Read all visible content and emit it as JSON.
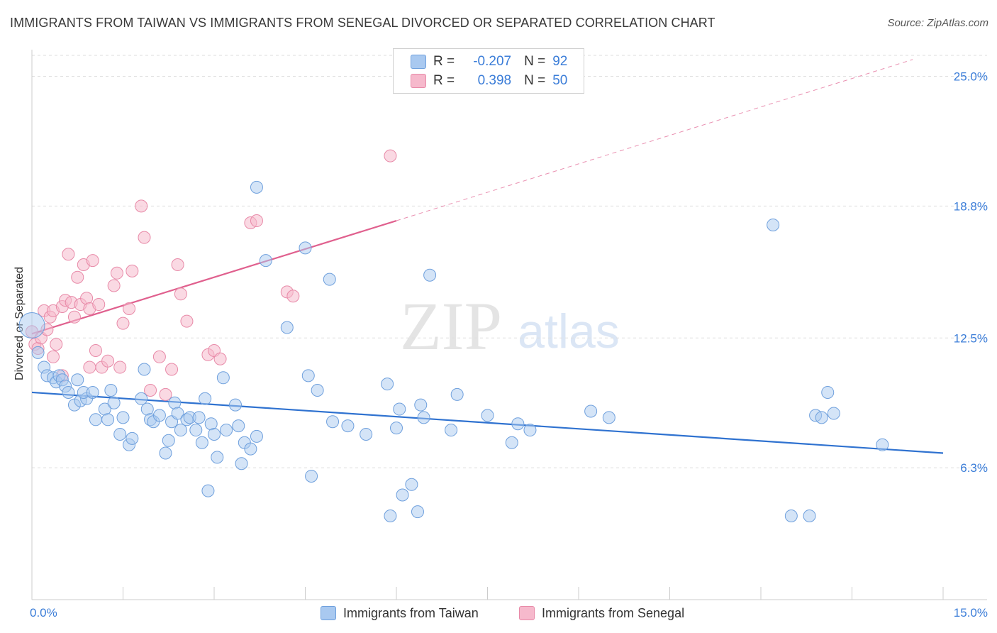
{
  "title": "IMMIGRANTS FROM TAIWAN VS IMMIGRANTS FROM SENEGAL DIVORCED OR SEPARATED CORRELATION CHART",
  "source": "Source: ZipAtlas.com",
  "watermark": {
    "zip": "ZIP",
    "atlas": "atlas"
  },
  "legend": {
    "r_label": "R =",
    "n_label": "N =",
    "taiwan": {
      "r": "-0.207",
      "n": "92"
    },
    "senegal": {
      "r": "0.398",
      "n": "50"
    }
  },
  "colors": {
    "taiwan_fill": "#a9c9f0",
    "taiwan_stroke": "#6fa0dd",
    "taiwan_line": "#2f72d0",
    "senegal_fill": "#f6b9cc",
    "senegal_stroke": "#e88aa8",
    "senegal_line": "#e0608e",
    "axis_text": "#3b7dd8"
  },
  "chart_data": {
    "type": "scatter",
    "title": "IMMIGRANTS FROM TAIWAN VS IMMIGRANTS FROM SENEGAL DIVORCED OR SEPARATED CORRELATION CHART",
    "xlabel": "",
    "ylabel": "Divorced or Separated",
    "xlim": [
      0,
      15
    ],
    "ylim": [
      0,
      26
    ],
    "x_tick_labels": [
      "0.0%",
      "15.0%"
    ],
    "y_ticks": [
      6.3,
      12.5,
      18.8,
      25.0
    ],
    "y_tick_labels": [
      "6.3%",
      "12.5%",
      "18.8%",
      "25.0%"
    ],
    "grid": "horizontal dashed",
    "legend_position": "top-center",
    "series": [
      {
        "name": "Immigrants from Taiwan",
        "trend": {
          "x": [
            0,
            15
          ],
          "y": [
            9.9,
            7.0
          ]
        },
        "points": [
          [
            0.0,
            13.1,
            2
          ],
          [
            0.1,
            11.8,
            1
          ],
          [
            0.2,
            11.1,
            1
          ],
          [
            0.25,
            10.7,
            1
          ],
          [
            0.35,
            10.6,
            1
          ],
          [
            0.4,
            10.4,
            1
          ],
          [
            0.45,
            10.7,
            1
          ],
          [
            0.5,
            10.5,
            1
          ],
          [
            0.55,
            10.2,
            1
          ],
          [
            0.6,
            9.9,
            1
          ],
          [
            0.75,
            10.5,
            1
          ],
          [
            0.7,
            9.3,
            1
          ],
          [
            0.8,
            9.5,
            1
          ],
          [
            0.9,
            9.6,
            1
          ],
          [
            0.85,
            9.9,
            1
          ],
          [
            1.0,
            9.9,
            1
          ],
          [
            1.05,
            8.6,
            1
          ],
          [
            1.2,
            9.1,
            1
          ],
          [
            1.25,
            8.6,
            1
          ],
          [
            1.3,
            10.0,
            1
          ],
          [
            1.35,
            9.4,
            1
          ],
          [
            1.5,
            8.7,
            1
          ],
          [
            1.45,
            7.9,
            1
          ],
          [
            1.6,
            7.4,
            1
          ],
          [
            1.65,
            7.7,
            1
          ],
          [
            1.8,
            9.6,
            1
          ],
          [
            1.85,
            11.0,
            1
          ],
          [
            1.9,
            9.1,
            1
          ],
          [
            1.95,
            8.6,
            1
          ],
          [
            2.0,
            8.5,
            1
          ],
          [
            2.1,
            8.8,
            1
          ],
          [
            2.2,
            7.0,
            1
          ],
          [
            2.25,
            7.6,
            1
          ],
          [
            2.3,
            8.5,
            1
          ],
          [
            2.35,
            9.4,
            1
          ],
          [
            2.4,
            8.9,
            1
          ],
          [
            2.45,
            8.1,
            1
          ],
          [
            2.55,
            8.6,
            1
          ],
          [
            2.6,
            8.7,
            1
          ],
          [
            2.7,
            8.1,
            1
          ],
          [
            2.75,
            8.7,
            1
          ],
          [
            2.8,
            7.5,
            1
          ],
          [
            2.85,
            9.6,
            1
          ],
          [
            2.9,
            5.2,
            1
          ],
          [
            2.95,
            8.4,
            1
          ],
          [
            3.0,
            7.9,
            1
          ],
          [
            3.05,
            6.8,
            1
          ],
          [
            3.15,
            10.6,
            1
          ],
          [
            3.2,
            8.1,
            1
          ],
          [
            3.35,
            9.3,
            1
          ],
          [
            3.4,
            8.3,
            1
          ],
          [
            3.45,
            6.5,
            1
          ],
          [
            3.5,
            7.5,
            1
          ],
          [
            3.6,
            7.2,
            1
          ],
          [
            3.7,
            7.8,
            1
          ],
          [
            3.7,
            19.7,
            1
          ],
          [
            3.85,
            16.2,
            1
          ],
          [
            4.2,
            13.0,
            1
          ],
          [
            4.5,
            16.8,
            1
          ],
          [
            4.55,
            10.7,
            1
          ],
          [
            4.6,
            5.9,
            1
          ],
          [
            4.7,
            10.0,
            1
          ],
          [
            4.9,
            15.3,
            1
          ],
          [
            4.95,
            8.5,
            1
          ],
          [
            5.2,
            8.3,
            1
          ],
          [
            5.5,
            7.9,
            1
          ],
          [
            5.85,
            10.3,
            1
          ],
          [
            5.9,
            4.0,
            1
          ],
          [
            6.0,
            8.2,
            1
          ],
          [
            6.05,
            9.1,
            1
          ],
          [
            6.1,
            5.0,
            1
          ],
          [
            6.25,
            5.5,
            1
          ],
          [
            6.35,
            4.2,
            1
          ],
          [
            6.4,
            9.3,
            1
          ],
          [
            6.45,
            8.7,
            1
          ],
          [
            6.55,
            15.5,
            1
          ],
          [
            6.9,
            8.1,
            1
          ],
          [
            7.0,
            9.8,
            1
          ],
          [
            7.5,
            8.8,
            1
          ],
          [
            7.9,
            7.5,
            1
          ],
          [
            8.0,
            8.4,
            1
          ],
          [
            8.2,
            8.1,
            1
          ],
          [
            9.2,
            9.0,
            1
          ],
          [
            9.5,
            8.7,
            1
          ],
          [
            12.2,
            17.9,
            1
          ],
          [
            12.5,
            4.0,
            1
          ],
          [
            12.8,
            4.0,
            1
          ],
          [
            12.9,
            8.8,
            1
          ],
          [
            13.0,
            8.7,
            1
          ],
          [
            13.1,
            9.9,
            1
          ],
          [
            13.2,
            8.9,
            1
          ],
          [
            14.0,
            7.4,
            1
          ]
        ]
      },
      {
        "name": "Immigrants from Senegal",
        "trend": {
          "x": [
            0,
            6.0
          ],
          "y": [
            12.7,
            18.1
          ]
        },
        "trend_extension": {
          "x": [
            6.0,
            14.5
          ],
          "y": [
            18.1,
            25.8
          ]
        },
        "points": [
          [
            0.0,
            12.8,
            1
          ],
          [
            0.05,
            12.2,
            1
          ],
          [
            0.1,
            12.0,
            1
          ],
          [
            0.15,
            12.5,
            1
          ],
          [
            0.2,
            13.8,
            1
          ],
          [
            0.25,
            12.9,
            1
          ],
          [
            0.3,
            13.5,
            1
          ],
          [
            0.35,
            13.8,
            1
          ],
          [
            0.35,
            11.6,
            1
          ],
          [
            0.4,
            12.2,
            1
          ],
          [
            0.5,
            10.7,
            1
          ],
          [
            0.5,
            14.0,
            1
          ],
          [
            0.55,
            14.3,
            1
          ],
          [
            0.6,
            16.5,
            1
          ],
          [
            0.65,
            14.2,
            1
          ],
          [
            0.7,
            13.5,
            1
          ],
          [
            0.75,
            15.4,
            1
          ],
          [
            0.8,
            14.1,
            1
          ],
          [
            0.85,
            16.0,
            1
          ],
          [
            0.9,
            14.4,
            1
          ],
          [
            0.95,
            13.9,
            1
          ],
          [
            0.95,
            11.1,
            1
          ],
          [
            1.0,
            16.2,
            1
          ],
          [
            1.05,
            11.9,
            1
          ],
          [
            1.1,
            14.1,
            1
          ],
          [
            1.15,
            11.1,
            1
          ],
          [
            1.25,
            11.4,
            1
          ],
          [
            1.35,
            15.0,
            1
          ],
          [
            1.4,
            15.6,
            1
          ],
          [
            1.45,
            11.1,
            1
          ],
          [
            1.5,
            13.2,
            1
          ],
          [
            1.6,
            13.9,
            1
          ],
          [
            1.65,
            15.7,
            1
          ],
          [
            1.8,
            18.8,
            1
          ],
          [
            1.85,
            17.3,
            1
          ],
          [
            1.95,
            10.0,
            1
          ],
          [
            2.1,
            11.6,
            1
          ],
          [
            2.2,
            9.8,
            1
          ],
          [
            2.3,
            11.0,
            1
          ],
          [
            2.4,
            16.0,
            1
          ],
          [
            2.45,
            14.6,
            1
          ],
          [
            2.55,
            13.3,
            1
          ],
          [
            2.9,
            11.7,
            1
          ],
          [
            3.0,
            11.9,
            1
          ],
          [
            3.1,
            11.5,
            1
          ],
          [
            3.6,
            18.0,
            1
          ],
          [
            3.7,
            18.1,
            1
          ],
          [
            4.2,
            14.7,
            1
          ],
          [
            4.3,
            14.5,
            1
          ],
          [
            5.9,
            21.2,
            1
          ]
        ]
      }
    ]
  },
  "bottom_legend": {
    "taiwan": "Immigrants from Taiwan",
    "senegal": "Immigrants from Senegal"
  }
}
